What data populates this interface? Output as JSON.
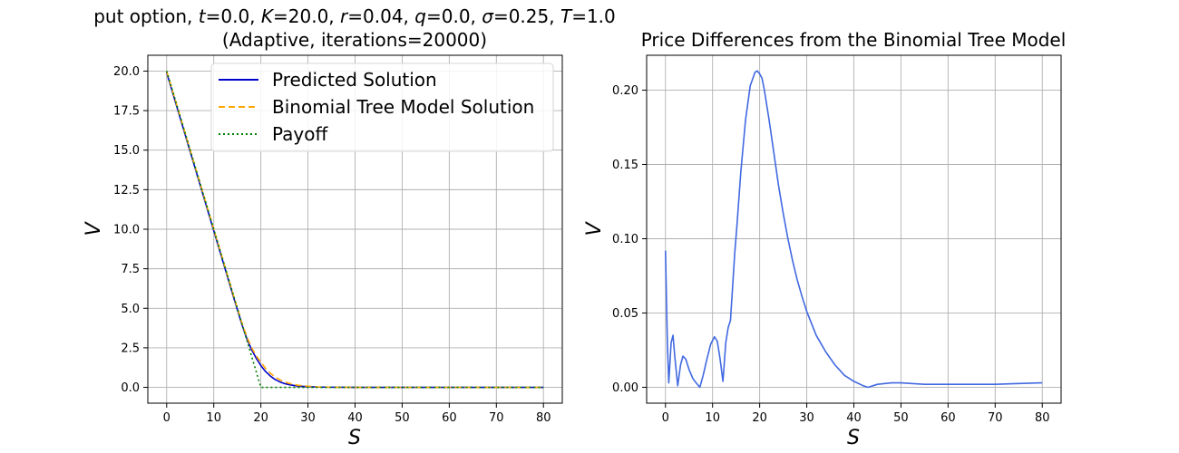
{
  "chart_data": [
    {
      "type": "line",
      "title_line1": "put option, t=0.0, K=20.0, r=0.04, q=0.0, σ=0.25, T=1.0",
      "title_line2": "(Adaptive, iterations=20000)",
      "title_parts": [
        {
          "t": "put option, "
        },
        {
          "t": "t",
          "i": true
        },
        {
          "t": "=0.0, "
        },
        {
          "t": "K",
          "i": true
        },
        {
          "t": "=20.0, "
        },
        {
          "t": "r",
          "i": true
        },
        {
          "t": "=0.04, "
        },
        {
          "t": "q",
          "i": true
        },
        {
          "t": "=0.0, "
        },
        {
          "t": "σ",
          "i": true
        },
        {
          "t": "=0.25, "
        },
        {
          "t": "T",
          "i": true
        },
        {
          "t": "=1.0"
        }
      ],
      "xlabel": "S",
      "ylabel": "V",
      "xlim": [
        -4,
        84
      ],
      "ylim": [
        -1.0,
        21.0
      ],
      "xticks": [
        0,
        10,
        20,
        30,
        40,
        50,
        60,
        70,
        80
      ],
      "yticks": [
        0.0,
        2.5,
        5.0,
        7.5,
        10.0,
        12.5,
        15.0,
        17.5,
        20.0
      ],
      "ytick_labels": [
        "0.0",
        "2.5",
        "5.0",
        "7.5",
        "10.0",
        "12.5",
        "15.0",
        "17.5",
        "20.0"
      ],
      "grid": true,
      "legend_position": "top-right",
      "series": [
        {
          "name": "Predicted Solution",
          "color": "#0000cd",
          "style": "solid",
          "x": [
            0,
            2,
            4,
            6,
            8,
            10,
            12,
            14,
            16,
            17,
            18,
            19,
            20,
            21,
            22,
            23,
            24,
            25,
            26,
            27,
            28,
            30,
            32,
            35,
            40,
            45,
            50,
            60,
            70,
            80
          ],
          "y": [
            19.9,
            17.9,
            15.9,
            13.9,
            11.9,
            9.9,
            7.9,
            5.9,
            3.95,
            3.1,
            2.4,
            1.85,
            1.38,
            1.0,
            0.72,
            0.5,
            0.35,
            0.24,
            0.17,
            0.12,
            0.08,
            0.04,
            0.02,
            0.01,
            0.0,
            0.0,
            0.0,
            0.0,
            0.0,
            0.0
          ]
        },
        {
          "name": "Binomial Tree Model Solution",
          "color": "#ffa500",
          "style": "dashed",
          "x": [
            0,
            2,
            4,
            6,
            8,
            10,
            12,
            14,
            16,
            17,
            18,
            19,
            20,
            21,
            22,
            23,
            24,
            25,
            26,
            27,
            28,
            30,
            32,
            35,
            40,
            45,
            50,
            60,
            70,
            80
          ],
          "y": [
            19.99,
            18.0,
            16.0,
            14.0,
            12.0,
            10.0,
            8.0,
            6.0,
            4.05,
            3.22,
            2.53,
            2.0,
            1.59,
            1.2,
            0.9,
            0.66,
            0.48,
            0.35,
            0.25,
            0.18,
            0.13,
            0.07,
            0.03,
            0.01,
            0.0,
            0.0,
            0.0,
            0.0,
            0.0,
            0.0
          ]
        },
        {
          "name": "Payoff",
          "color": "#008000",
          "style": "dotted",
          "x": [
            0,
            20,
            80
          ],
          "y": [
            20.0,
            0.0,
            0.0
          ]
        }
      ]
    },
    {
      "type": "line",
      "title": "Price Differences from the Binomial Tree Model",
      "xlabel": "S",
      "ylabel": "V",
      "xlim": [
        -4,
        84
      ],
      "ylim": [
        -0.0107,
        0.2235
      ],
      "xticks": [
        0,
        10,
        20,
        30,
        40,
        50,
        60,
        70,
        80
      ],
      "yticks": [
        0.0,
        0.05,
        0.1,
        0.15,
        0.2
      ],
      "ytick_labels": [
        "0.00",
        "0.05",
        "0.10",
        "0.15",
        "0.20"
      ],
      "grid": true,
      "series": [
        {
          "color": "#4169e1",
          "style": "solid",
          "x": [
            0,
            0.4,
            0.7,
            1.2,
            1.6,
            2.0,
            2.6,
            3.2,
            3.7,
            4.3,
            5.0,
            5.8,
            6.5,
            7.3,
            8.0,
            8.8,
            9.6,
            10.4,
            11.0,
            11.6,
            12.2,
            12.8,
            13.3,
            13.8,
            14.3,
            14.7,
            15.2,
            16.0,
            17.0,
            18.0,
            19.0,
            19.5,
            20.0,
            20.5,
            21.0,
            22.0,
            23.0,
            24.0,
            25.0,
            26.0,
            27.0,
            28.0,
            29.0,
            30.0,
            32.0,
            34.0,
            36.0,
            38.0,
            40.0,
            42.0,
            43.0,
            45.0,
            48.0,
            50.0,
            55.0,
            60.0,
            65.0,
            70.0,
            75.0,
            80.0
          ],
          "y": [
            0.092,
            0.03,
            0.003,
            0.03,
            0.035,
            0.02,
            0.001,
            0.015,
            0.021,
            0.019,
            0.012,
            0.006,
            0.003,
            0.0,
            0.008,
            0.019,
            0.029,
            0.034,
            0.031,
            0.019,
            0.004,
            0.03,
            0.04,
            0.045,
            0.07,
            0.09,
            0.11,
            0.145,
            0.18,
            0.203,
            0.212,
            0.213,
            0.211,
            0.208,
            0.2,
            0.18,
            0.158,
            0.136,
            0.117,
            0.1,
            0.085,
            0.072,
            0.061,
            0.051,
            0.035,
            0.024,
            0.015,
            0.008,
            0.004,
            0.001,
            0.0,
            0.002,
            0.003,
            0.003,
            0.002,
            0.002,
            0.002,
            0.002,
            0.0025,
            0.003
          ]
        }
      ]
    }
  ]
}
